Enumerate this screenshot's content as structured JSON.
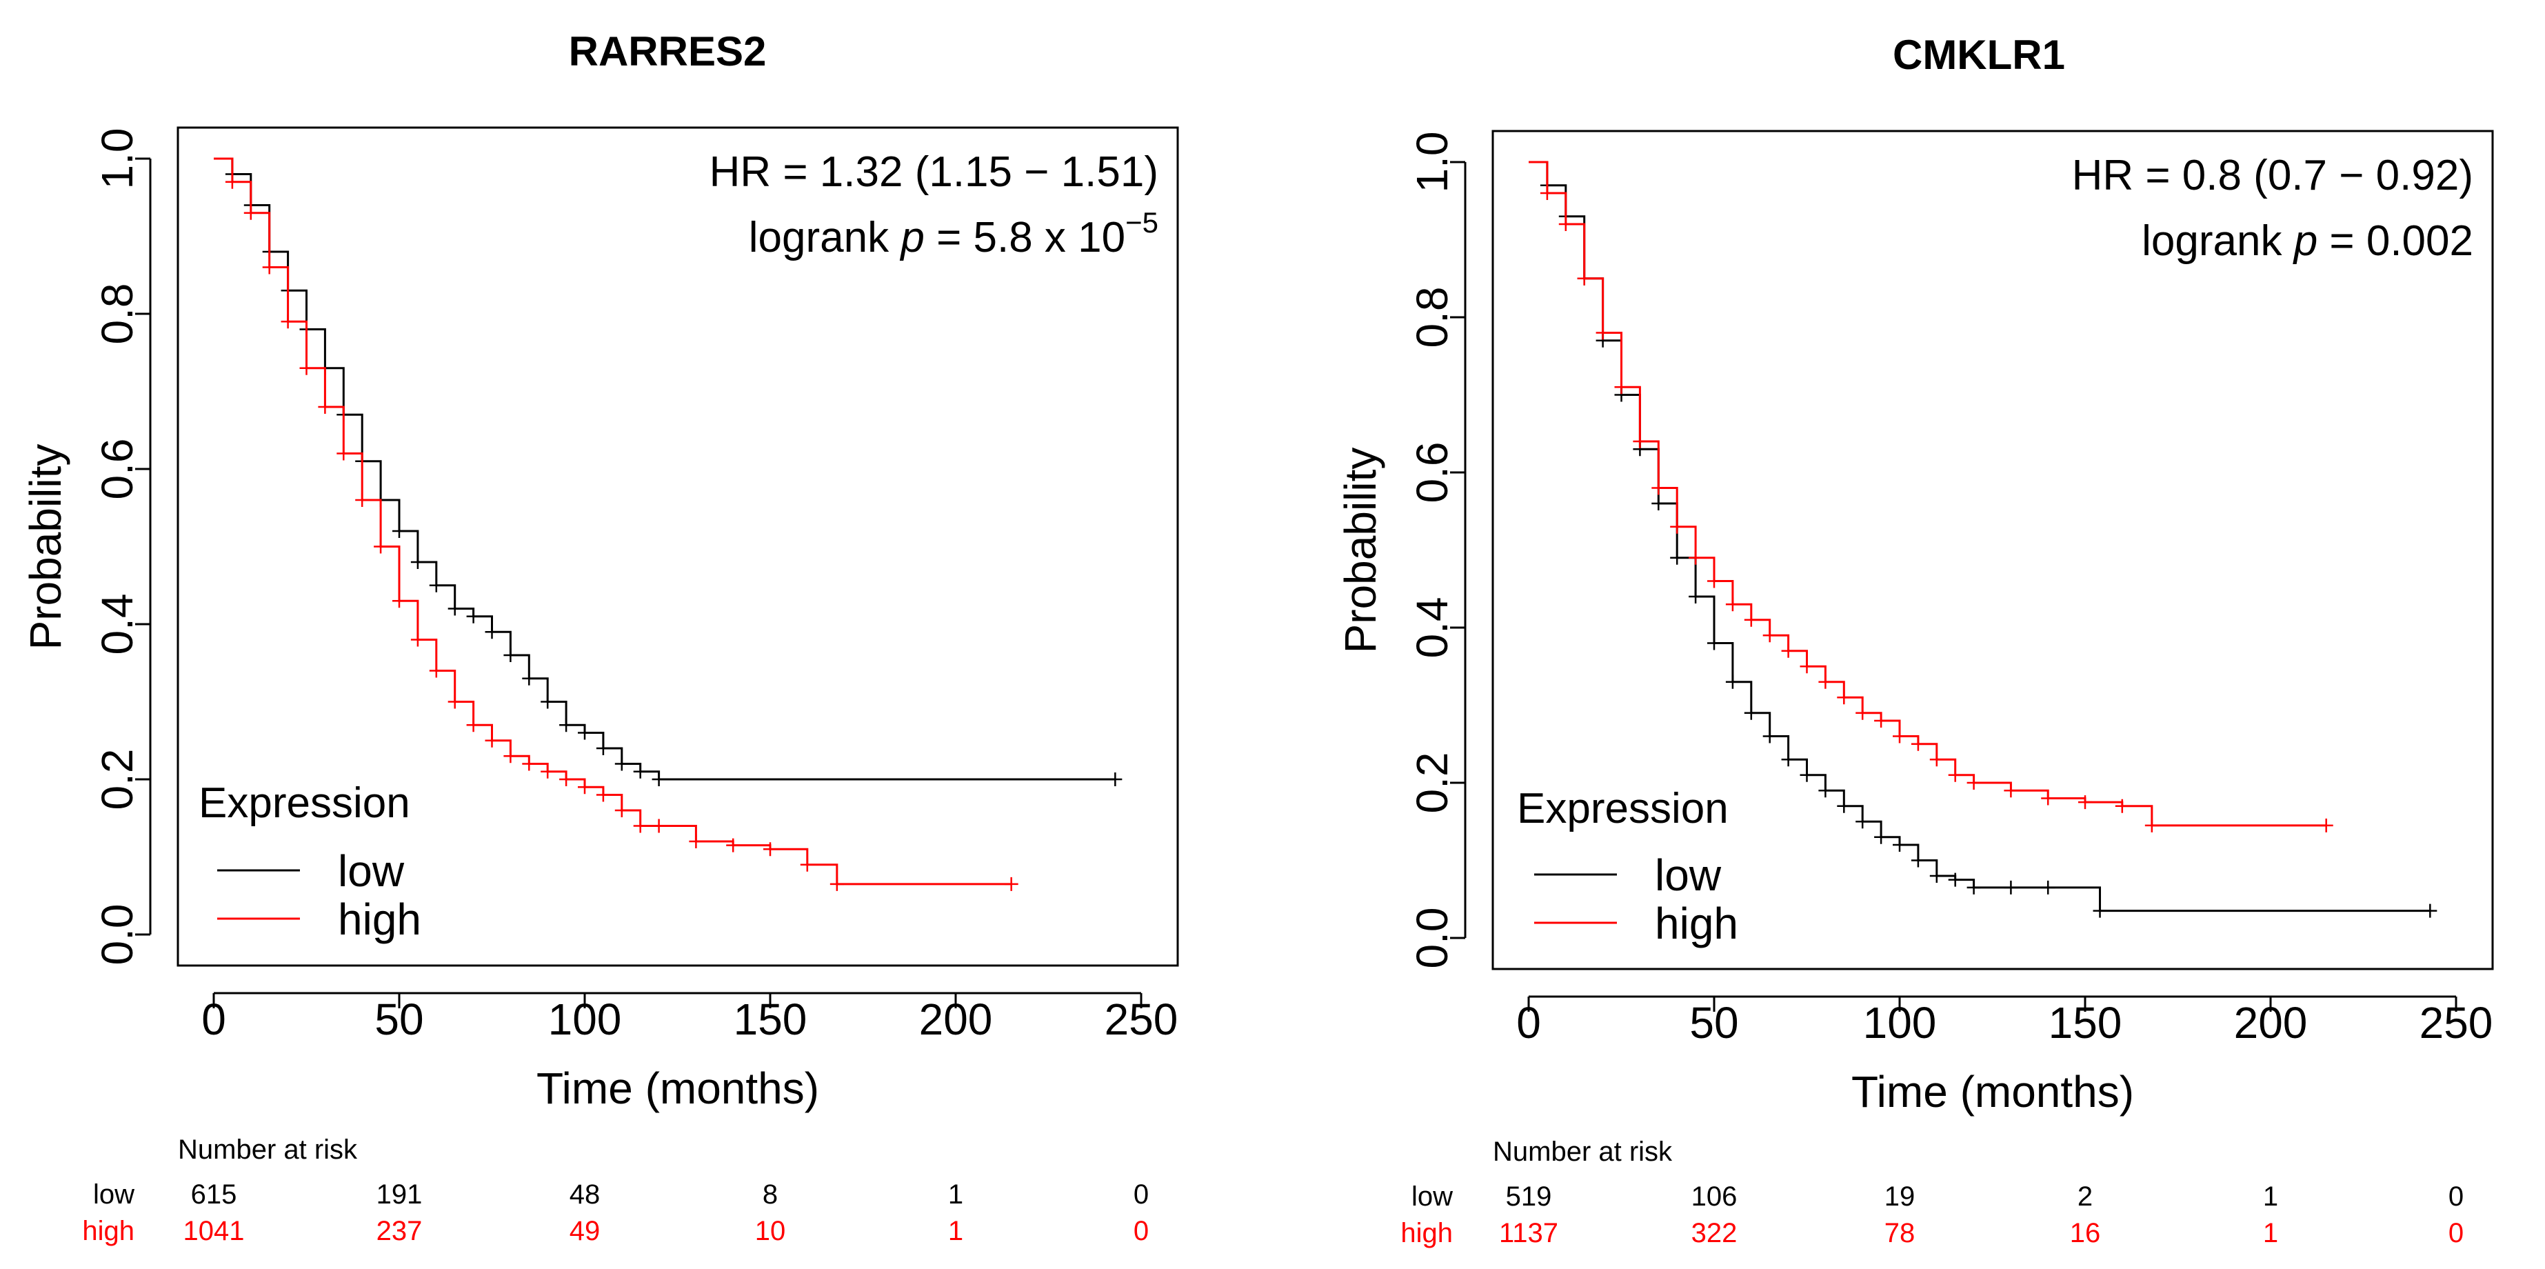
{
  "chart_data": [
    {
      "type": "line",
      "title": "RARRES2",
      "xlabel": "Time (months)",
      "ylabel": "Probability",
      "xlim": [
        0,
        250
      ],
      "ylim": [
        0,
        1
      ],
      "xticks": [
        "0",
        "50",
        "100",
        "150",
        "200",
        "250"
      ],
      "yticks": [
        "0.0",
        "0.2",
        "0.4",
        "0.6",
        "0.8",
        "1.0"
      ],
      "annotations": {
        "hr": "HR = 1.32 (1.15 − 1.51)",
        "logrank_prefix": "logrank",
        "p_symbol": "p",
        "logrank_value": "= 5.8 x 10",
        "logrank_exp": "−5"
      },
      "legend": {
        "title": "Expression",
        "position": "bottom-left"
      },
      "series": [
        {
          "name": "low",
          "color": "#000000",
          "x": [
            0,
            5,
            10,
            15,
            20,
            25,
            30,
            35,
            40,
            45,
            50,
            55,
            60,
            65,
            70,
            75,
            80,
            85,
            90,
            95,
            100,
            105,
            110,
            115,
            120,
            243
          ],
          "y": [
            1.0,
            0.98,
            0.94,
            0.88,
            0.83,
            0.78,
            0.73,
            0.67,
            0.61,
            0.56,
            0.52,
            0.48,
            0.45,
            0.42,
            0.41,
            0.39,
            0.36,
            0.33,
            0.3,
            0.27,
            0.26,
            0.24,
            0.22,
            0.21,
            0.2,
            0.2
          ]
        },
        {
          "name": "high",
          "color": "#ff0000",
          "x": [
            0,
            5,
            10,
            15,
            20,
            25,
            30,
            35,
            40,
            45,
            50,
            55,
            60,
            65,
            70,
            75,
            80,
            85,
            90,
            95,
            100,
            105,
            110,
            115,
            120,
            130,
            140,
            150,
            160,
            168,
            215
          ],
          "y": [
            1.0,
            0.97,
            0.93,
            0.86,
            0.79,
            0.73,
            0.68,
            0.62,
            0.56,
            0.5,
            0.43,
            0.38,
            0.34,
            0.3,
            0.27,
            0.25,
            0.23,
            0.22,
            0.21,
            0.2,
            0.19,
            0.18,
            0.16,
            0.14,
            0.14,
            0.12,
            0.115,
            0.11,
            0.09,
            0.065,
            0.065
          ]
        }
      ],
      "risk_table": {
        "title": "Number at risk",
        "rows": [
          {
            "label": "low",
            "color": "#000000",
            "values": [
              "615",
              "191",
              "48",
              "8",
              "1",
              "0"
            ]
          },
          {
            "label": "high",
            "color": "#ff0000",
            "values": [
              "1041",
              "237",
              "49",
              "10",
              "1",
              "0"
            ]
          }
        ]
      }
    },
    {
      "type": "line",
      "title": "CMKLR1",
      "xlabel": "Time (months)",
      "ylabel": "Probability",
      "xlim": [
        0,
        250
      ],
      "ylim": [
        0,
        1
      ],
      "xticks": [
        "0",
        "50",
        "100",
        "150",
        "200",
        "250"
      ],
      "yticks": [
        "0.0",
        "0.2",
        "0.4",
        "0.6",
        "0.8",
        "1.0"
      ],
      "annotations": {
        "hr": "HR = 0.8 (0.7 − 0.92)",
        "logrank_prefix": "logrank",
        "p_symbol": "p",
        "logrank_value": "= 0.002",
        "logrank_exp": ""
      },
      "legend": {
        "title": "Expression",
        "position": "bottom-left"
      },
      "series": [
        {
          "name": "low",
          "color": "#000000",
          "x": [
            0,
            5,
            10,
            15,
            20,
            25,
            30,
            35,
            40,
            45,
            50,
            55,
            60,
            65,
            70,
            75,
            80,
            85,
            90,
            95,
            100,
            105,
            110,
            115,
            120,
            130,
            140,
            154,
            243
          ],
          "y": [
            1.0,
            0.97,
            0.93,
            0.85,
            0.77,
            0.7,
            0.63,
            0.56,
            0.49,
            0.44,
            0.38,
            0.33,
            0.29,
            0.26,
            0.23,
            0.21,
            0.19,
            0.17,
            0.15,
            0.13,
            0.12,
            0.1,
            0.08,
            0.075,
            0.065,
            0.065,
            0.065,
            0.035,
            0.035
          ]
        },
        {
          "name": "high",
          "color": "#ff0000",
          "x": [
            0,
            5,
            10,
            15,
            20,
            25,
            30,
            35,
            40,
            45,
            50,
            55,
            60,
            65,
            70,
            75,
            80,
            85,
            90,
            95,
            100,
            105,
            110,
            115,
            120,
            130,
            140,
            150,
            160,
            168,
            215
          ],
          "y": [
            1.0,
            0.96,
            0.92,
            0.85,
            0.78,
            0.71,
            0.64,
            0.58,
            0.53,
            0.49,
            0.46,
            0.43,
            0.41,
            0.39,
            0.37,
            0.35,
            0.33,
            0.31,
            0.29,
            0.28,
            0.26,
            0.25,
            0.23,
            0.21,
            0.2,
            0.19,
            0.18,
            0.175,
            0.17,
            0.145,
            0.145
          ]
        }
      ],
      "risk_table": {
        "title": "Number at risk",
        "rows": [
          {
            "label": "low",
            "color": "#000000",
            "values": [
              "519",
              "106",
              "19",
              "2",
              "1",
              "0"
            ]
          },
          {
            "label": "high",
            "color": "#ff0000",
            "values": [
              "1137",
              "322",
              "78",
              "16",
              "1",
              "0"
            ]
          }
        ]
      }
    }
  ]
}
